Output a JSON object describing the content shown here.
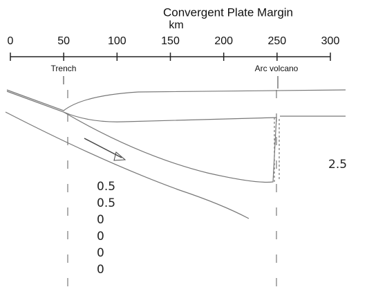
{
  "header": {
    "title": "Convergent Plate Margin",
    "unit": "km"
  },
  "scale": {
    "ticks": [
      0,
      50,
      100,
      150,
      200,
      250,
      300
    ]
  },
  "labels": {
    "trench": "Trench",
    "arc_volcano": "Arc volcano"
  },
  "handwriting": {
    "side_note": "2.5",
    "column": [
      "0.5",
      "0.5",
      "0",
      "0",
      "0",
      "0"
    ]
  }
}
